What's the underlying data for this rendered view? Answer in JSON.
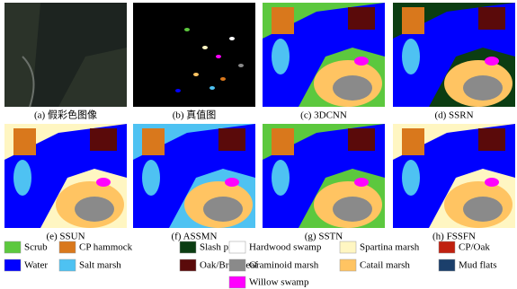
{
  "panels": [
    {
      "caption": "(a) 假彩色图像"
    },
    {
      "caption": "(b) 真值图"
    },
    {
      "caption": "(c) 3DCNN"
    },
    {
      "caption": "(d) SSRN"
    },
    {
      "caption": "(e) SSUN"
    },
    {
      "caption": "(f) ASSMN"
    },
    {
      "caption": "(g) SSTN"
    },
    {
      "caption": "(h) FSSFN"
    }
  ],
  "legend": [
    {
      "label": "Scrub",
      "color": "#5cc83e"
    },
    {
      "label": "CP hammock",
      "color": "#d9781c"
    },
    {
      "label": "Slash pine",
      "color": "#0b3d12"
    },
    {
      "label": "Hardwood swamp",
      "color": "#ffffff"
    },
    {
      "label": "Spartina marsh",
      "color": "#fff6c2"
    },
    {
      "label": "CP/Oak",
      "color": "#c0200f"
    },
    {
      "label": "Water",
      "color": "#0000ff"
    },
    {
      "label": "Salt marsh",
      "color": "#4ec2f2"
    },
    {
      "label": "Oak/Broadleaf",
      "color": "#5a0a0a"
    },
    {
      "label": "Graminoid marsh",
      "color": "#8a8a8a"
    },
    {
      "label": "Catail marsh",
      "color": "#ffc462"
    },
    {
      "label": "Mud flats",
      "color": "#1b3f6b"
    },
    {
      "label": "Willow swamp",
      "color": "#ff00ff"
    }
  ]
}
